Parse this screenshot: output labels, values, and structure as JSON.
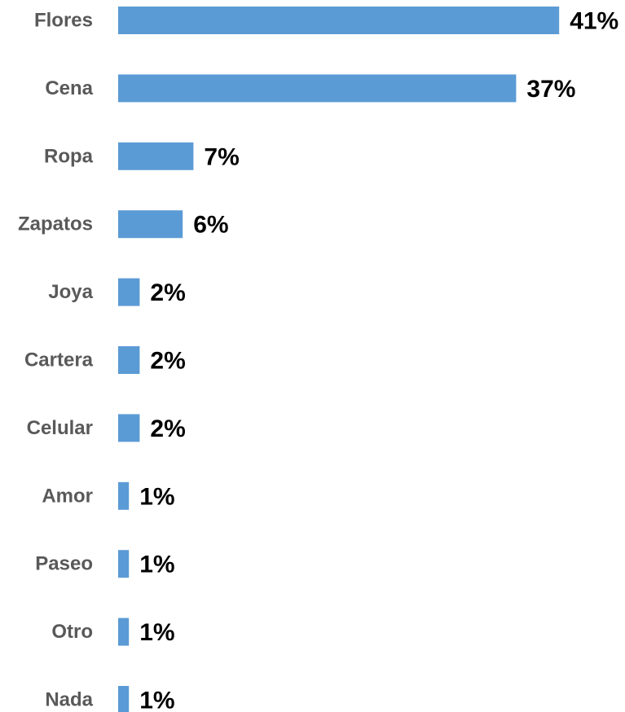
{
  "chart_data": {
    "type": "bar",
    "orientation": "horizontal",
    "categories": [
      "Flores",
      "Cena",
      "Ropa",
      "Zapatos",
      "Joya",
      "Cartera",
      "Celular",
      "Amor",
      "Paseo",
      "Otro",
      "Nada"
    ],
    "values": [
      41,
      37,
      7,
      6,
      2,
      2,
      2,
      1,
      1,
      1,
      1
    ],
    "data_labels": [
      "41%",
      "37%",
      "7%",
      "6%",
      "2%",
      "2%",
      "2%",
      "1%",
      "1%",
      "1%",
      "1%"
    ],
    "value_unit": "%",
    "title": "",
    "xlabel": "",
    "ylabel": "",
    "grid": false,
    "legend": "none",
    "bar_color": "#5B9BD5",
    "category_label_color": "#595959",
    "value_label_color": "#000000"
  }
}
